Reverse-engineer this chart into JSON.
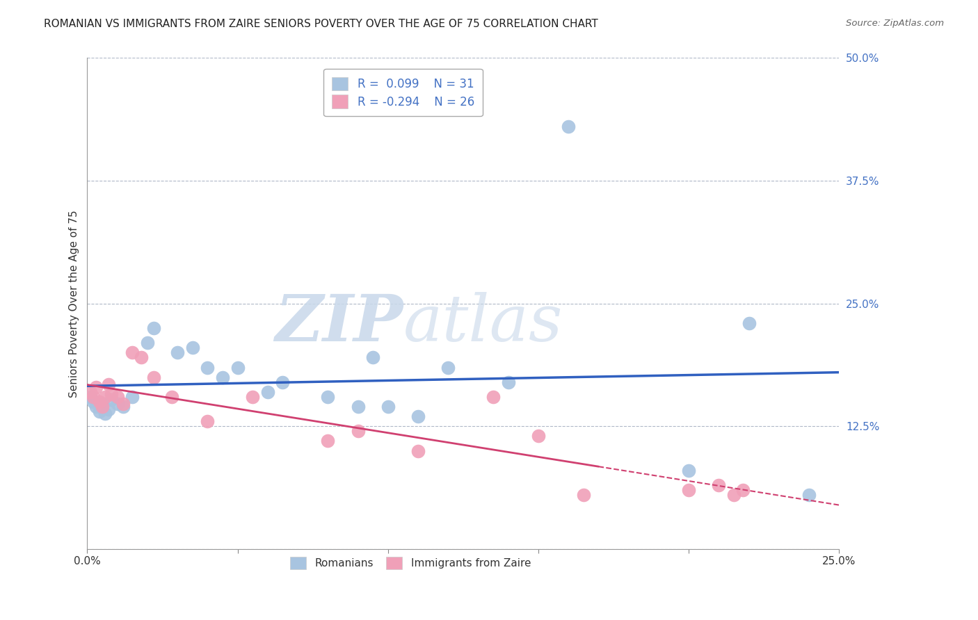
{
  "title": "ROMANIAN VS IMMIGRANTS FROM ZAIRE SENIORS POVERTY OVER THE AGE OF 75 CORRELATION CHART",
  "source": "Source: ZipAtlas.com",
  "ylabel": "Seniors Poverty Over the Age of 75",
  "xlim": [
    0.0,
    0.25
  ],
  "ylim": [
    0.0,
    0.5
  ],
  "xticks": [
    0.0,
    0.05,
    0.1,
    0.15,
    0.2,
    0.25
  ],
  "xtick_labels": [
    "0.0%",
    "",
    "",
    "",
    "",
    "25.0%"
  ],
  "yticks": [
    0.0,
    0.125,
    0.25,
    0.375,
    0.5
  ],
  "ytick_labels": [
    "",
    "12.5%",
    "25.0%",
    "37.5%",
    "50.0%"
  ],
  "romanian_color": "#a8c4e0",
  "zaire_color": "#f0a0b8",
  "trend_romanian_color": "#3060c0",
  "trend_zaire_color": "#d04070",
  "R_romanian": 0.099,
  "N_romanian": 31,
  "R_zaire": -0.294,
  "N_zaire": 26,
  "background_color": "#ffffff",
  "grid_color": "#b0b8c8",
  "watermark_color": "#d8e4f0",
  "romanian_points_x": [
    0.001,
    0.002,
    0.003,
    0.004,
    0.005,
    0.006,
    0.007,
    0.008,
    0.01,
    0.012,
    0.015,
    0.02,
    0.022,
    0.03,
    0.035,
    0.04,
    0.045,
    0.05,
    0.06,
    0.065,
    0.08,
    0.09,
    0.095,
    0.1,
    0.11,
    0.12,
    0.14,
    0.16,
    0.2,
    0.22,
    0.24
  ],
  "romanian_points_y": [
    0.155,
    0.15,
    0.145,
    0.14,
    0.148,
    0.138,
    0.142,
    0.152,
    0.148,
    0.145,
    0.155,
    0.21,
    0.225,
    0.2,
    0.205,
    0.185,
    0.175,
    0.185,
    0.16,
    0.17,
    0.155,
    0.145,
    0.195,
    0.145,
    0.135,
    0.185,
    0.17,
    0.43,
    0.08,
    0.23,
    0.055
  ],
  "zaire_points_x": [
    0.001,
    0.002,
    0.003,
    0.004,
    0.005,
    0.006,
    0.007,
    0.008,
    0.01,
    0.012,
    0.015,
    0.018,
    0.022,
    0.028,
    0.04,
    0.055,
    0.08,
    0.09,
    0.11,
    0.135,
    0.15,
    0.165,
    0.2,
    0.21,
    0.215,
    0.218
  ],
  "zaire_points_y": [
    0.16,
    0.155,
    0.165,
    0.15,
    0.145,
    0.155,
    0.168,
    0.158,
    0.155,
    0.148,
    0.2,
    0.195,
    0.175,
    0.155,
    0.13,
    0.155,
    0.11,
    0.12,
    0.1,
    0.155,
    0.115,
    0.055,
    0.06,
    0.065,
    0.055,
    0.06
  ]
}
